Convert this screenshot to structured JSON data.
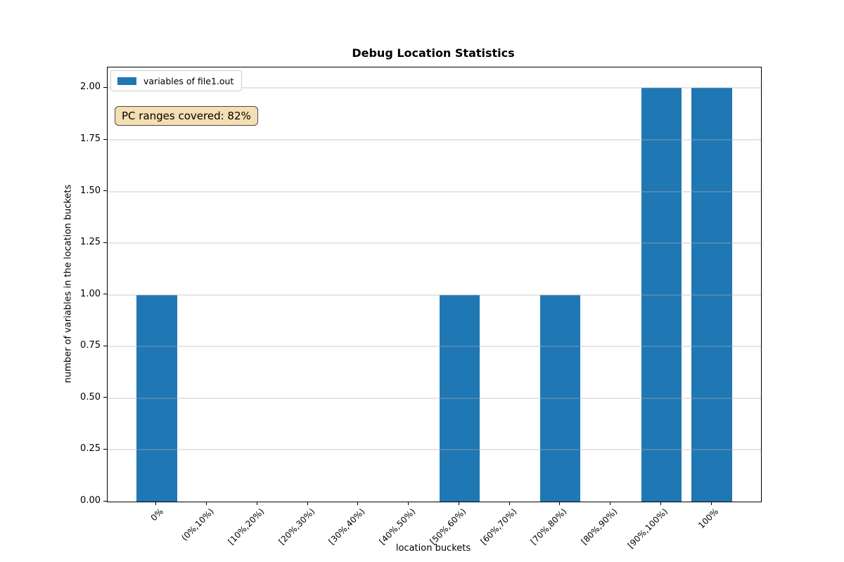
{
  "chart_data": {
    "type": "bar",
    "title": "Debug Location Statistics",
    "xlabel": "location buckets",
    "ylabel": "number of variables in the location buckets",
    "categories": [
      "0%",
      "(0%,10%)",
      "[10%,20%)",
      "[20%,30%)",
      "[30%,40%)",
      "[40%,50%)",
      "[50%,60%)",
      "[60%,70%)",
      "[70%,80%)",
      "[80%,90%)",
      "[90%,100%)",
      "100%"
    ],
    "values": [
      1,
      0,
      0,
      0,
      0,
      0,
      1,
      0,
      1,
      0,
      2,
      2
    ],
    "series": [
      {
        "name": "variables of file1.out",
        "values": [
          1,
          0,
          0,
          0,
          0,
          0,
          1,
          0,
          1,
          0,
          2,
          2
        ]
      }
    ],
    "yticks": [
      0,
      0.25,
      0.5,
      0.75,
      1,
      1.25,
      1.5,
      1.75,
      2
    ],
    "ytick_label_format": "2-decimals",
    "ylim": [
      0,
      2.1
    ],
    "grid": "horizontal",
    "legend": {
      "position": "upper left",
      "entries": [
        "variables of file1.out"
      ]
    },
    "annotation": {
      "text": "PC ranges covered: 82%",
      "bg_color": "#f5deb3"
    },
    "colors": {
      "bar": "#1f77b4",
      "grid": "#b0b0b0",
      "axis": "#000000"
    }
  }
}
